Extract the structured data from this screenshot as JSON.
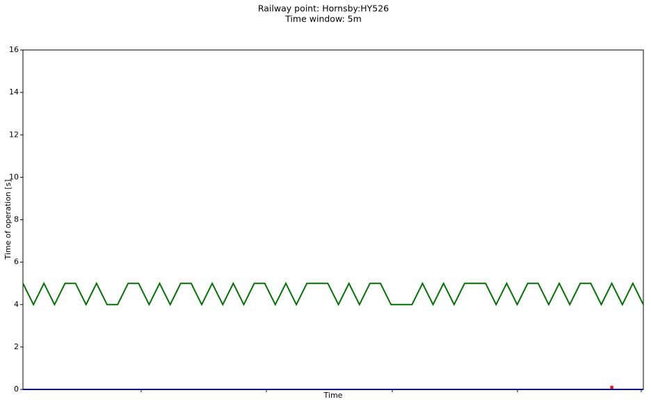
{
  "chart_data": {
    "type": "line",
    "title": "Railway point: Hornsby:HY526",
    "subtitle": "Time window: 5m",
    "xlabel": "Time",
    "ylabel": "Time of operation [s]",
    "ylim": [
      0,
      16
    ],
    "yticks": [
      0,
      2,
      4,
      6,
      8,
      10,
      12,
      14,
      16
    ],
    "grid": false,
    "series": [
      {
        "type": "line",
        "color": "#007000",
        "values": [
          5,
          4,
          5,
          4,
          5,
          5,
          4,
          5,
          4,
          4,
          5,
          5,
          4,
          5,
          4,
          5,
          5,
          4,
          5,
          4,
          5,
          4,
          5,
          5,
          4,
          5,
          4,
          5,
          5,
          5,
          4,
          5,
          4,
          5,
          5,
          4,
          4,
          4,
          5,
          4,
          5,
          4,
          5,
          5,
          5,
          4,
          5,
          4,
          5,
          5,
          4,
          5,
          4,
          5,
          5,
          4,
          5,
          4,
          5,
          4
        ]
      },
      {
        "type": "line",
        "color": "#00008b",
        "values": [
          0,
          0,
          0,
          0,
          0,
          0,
          0,
          0,
          0,
          0,
          0,
          0,
          0,
          0,
          0,
          0,
          0,
          0,
          0,
          0,
          0,
          0,
          0,
          0,
          0,
          0,
          0,
          0,
          0,
          0,
          0,
          0,
          0,
          0,
          0,
          0,
          0,
          0,
          0,
          0,
          0,
          0,
          0,
          0,
          0,
          0,
          0,
          0,
          0,
          0,
          0,
          0,
          0,
          0,
          0,
          0,
          0,
          0,
          0,
          0
        ]
      },
      {
        "type": "scatter",
        "color": "#e02020",
        "values": [
          null,
          null,
          null,
          null,
          null,
          null,
          null,
          null,
          null,
          null,
          null,
          null,
          null,
          null,
          null,
          null,
          null,
          null,
          null,
          null,
          null,
          null,
          null,
          null,
          null,
          null,
          null,
          null,
          null,
          null,
          null,
          null,
          null,
          null,
          null,
          null,
          null,
          null,
          null,
          null,
          null,
          null,
          null,
          null,
          null,
          null,
          null,
          null,
          null,
          null,
          null,
          null,
          null,
          null,
          null,
          null,
          0.1,
          null,
          null,
          null
        ]
      }
    ]
  }
}
